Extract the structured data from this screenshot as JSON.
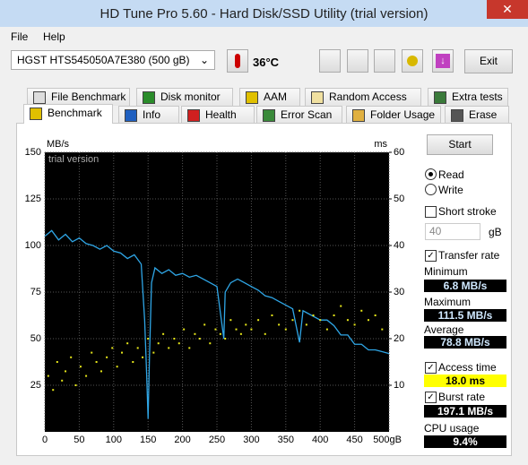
{
  "window": {
    "title": "HD Tune Pro 5.60 - Hard Disk/SSD Utility (trial version)"
  },
  "menu": [
    "File",
    "Help"
  ],
  "toolbar": {
    "drive": "HGST HTS545050A7E380 (500 gB)",
    "temperature": "36°C",
    "exit": "Exit"
  },
  "tabs_top": [
    "File Benchmark",
    "Disk monitor",
    "AAM",
    "Random Access",
    "Extra tests"
  ],
  "tabs_bottom": [
    "Benchmark",
    "Info",
    "Health",
    "Error Scan",
    "Folder Usage",
    "Erase"
  ],
  "chart_data": {
    "type": "line",
    "y_label": "MB/s",
    "y2_label": "ms",
    "annotation": "trial version",
    "xlim": [
      0,
      500
    ],
    "xticks": [
      0,
      50,
      100,
      150,
      200,
      250,
      300,
      350,
      400,
      450,
      {
        "value": 500,
        "label": "500gB"
      }
    ],
    "ylim": [
      0,
      150
    ],
    "yticks": [
      25,
      50,
      75,
      100,
      125,
      150
    ],
    "y2lim": [
      0,
      60
    ],
    "y2ticks": [
      10,
      20,
      30,
      40,
      50,
      60
    ],
    "grid": true,
    "series": [
      {
        "color": "#2fa6e6",
        "x": [
          0,
          10,
          20,
          30,
          40,
          50,
          60,
          70,
          80,
          90,
          100,
          110,
          120,
          130,
          140,
          145,
          148,
          150,
          152,
          155,
          160,
          170,
          180,
          190,
          200,
          210,
          220,
          230,
          240,
          250,
          260,
          262,
          270,
          280,
          290,
          300,
          310,
          320,
          330,
          340,
          350,
          360,
          370,
          375,
          380,
          390,
          400,
          410,
          420,
          430,
          440,
          450,
          460,
          470,
          480,
          490,
          500
        ],
        "values": [
          105,
          108,
          103,
          106,
          102,
          104,
          101,
          100,
          98,
          100,
          97,
          96,
          93,
          95,
          90,
          60,
          30,
          7,
          40,
          80,
          88,
          85,
          87,
          84,
          85,
          83,
          84,
          82,
          80,
          78,
          50,
          75,
          80,
          82,
          80,
          78,
          76,
          73,
          72,
          70,
          68,
          66,
          48,
          65,
          64,
          62,
          60,
          60,
          57,
          52,
          52,
          47,
          47,
          44,
          44,
          43,
          42
        ]
      },
      {
        "type": "scatter",
        "axis": "y2",
        "color": "#e6e61a",
        "x": [
          5,
          12,
          18,
          25,
          30,
          38,
          45,
          52,
          60,
          68,
          75,
          82,
          90,
          98,
          105,
          112,
          120,
          128,
          135,
          142,
          150,
          158,
          165,
          172,
          180,
          188,
          195,
          202,
          210,
          218,
          225,
          232,
          240,
          248,
          255,
          262,
          270,
          278,
          285,
          292,
          300,
          310,
          320,
          330,
          340,
          350,
          360,
          370,
          380,
          390,
          400,
          410,
          420,
          430,
          440,
          450,
          460,
          470,
          480,
          490
        ],
        "values": [
          12,
          9,
          15,
          11,
          13,
          16,
          10,
          14,
          12,
          17,
          15,
          13,
          16,
          18,
          14,
          17,
          19,
          15,
          18,
          16,
          20,
          17,
          19,
          21,
          18,
          20,
          19,
          22,
          18,
          21,
          20,
          23,
          19,
          22,
          21,
          20,
          24,
          22,
          21,
          23,
          22,
          24,
          21,
          25,
          23,
          22,
          24,
          26,
          23,
          25,
          24,
          22,
          25,
          27,
          24,
          23,
          26,
          24,
          25,
          22
        ]
      }
    ]
  },
  "side": {
    "start": "Start",
    "read": "Read",
    "write": "Write",
    "short_stroke": "Short stroke",
    "stroke_value": "40",
    "stroke_unit": "gB",
    "transfer_rate": "Transfer rate",
    "minimum_label": "Minimum",
    "minimum": "6.8 MB/s",
    "maximum_label": "Maximum",
    "maximum": "111.5 MB/s",
    "average_label": "Average",
    "average": "78.8 MB/s",
    "access_time": "Access time",
    "access_value": "18.0 ms",
    "burst_rate": "Burst rate",
    "burst_value": "197.1 MB/s",
    "cpu_label": "CPU usage",
    "cpu_value": "9.4%"
  }
}
